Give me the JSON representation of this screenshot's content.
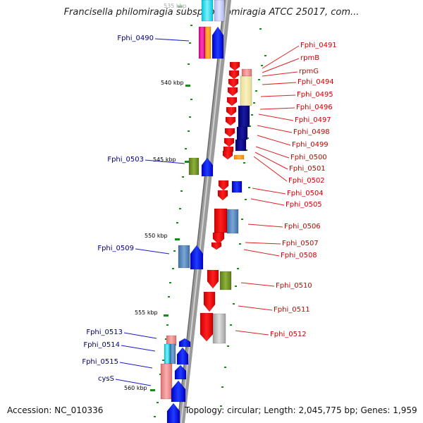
{
  "title": "Francisella philomiragia subsp. philomiragia ATCC 25017, com...",
  "ticks": [
    {
      "label": "535 kbp"
    },
    {
      "label": "540 kbp"
    },
    {
      "label": "545 kbp"
    },
    {
      "label": "550 kbp"
    },
    {
      "label": "555 kbp"
    },
    {
      "label": "560 kbp"
    }
  ],
  "genes_left": [
    {
      "label": "Fphi_0490"
    },
    {
      "label": "Fphi_0503"
    },
    {
      "label": "Fphi_0509"
    },
    {
      "label": "Fphi_0513"
    },
    {
      "label": "Fphi_0514"
    },
    {
      "label": "Fphi_0515"
    },
    {
      "label": "cysS"
    }
  ],
  "genes_right": [
    {
      "label": "Fphi_0491"
    },
    {
      "label": "rpmB"
    },
    {
      "label": "rpmG"
    },
    {
      "label": "Fphi_0494"
    },
    {
      "label": "Fphi_0495"
    },
    {
      "label": "Fphi_0496"
    },
    {
      "label": "Fphi_0497"
    },
    {
      "label": "Fphi_0498"
    },
    {
      "label": "Fphi_0499"
    },
    {
      "label": "Fphi_0500"
    },
    {
      "label": "Fphi_0501"
    },
    {
      "label": "Fphi_0502"
    },
    {
      "label": "Fphi_0504"
    },
    {
      "label": "Fphi_0505"
    },
    {
      "label": "Fphi_0506"
    },
    {
      "label": "Fphi_0507"
    },
    {
      "label": "Fphi_0508"
    },
    {
      "label": "Fphi_0510"
    },
    {
      "label": "Fphi_0511"
    },
    {
      "label": "Fphi_0512"
    }
  ],
  "footer": {
    "accession": "Accession: NC_010336",
    "info": "Topology: circular; Length: 2,045,775 bp; Genes: 1,959"
  }
}
